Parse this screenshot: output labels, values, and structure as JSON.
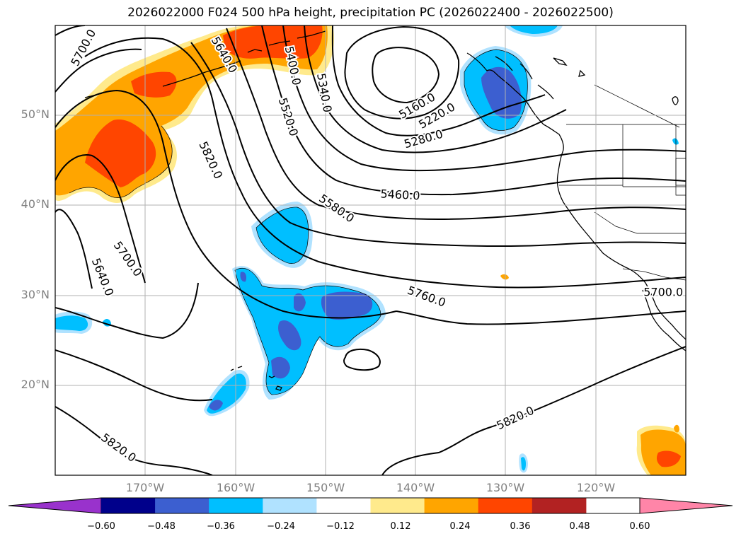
{
  "title": "2026022000 F024 500 hPa height, precipitation PC (2026022400 - 2026022500)",
  "map": {
    "lat_ticks": [
      "50°N",
      "40°N",
      "30°N",
      "20°N"
    ],
    "lon_ticks": [
      "170°W",
      "160°W",
      "150°W",
      "140°W",
      "130°W",
      "120°W"
    ],
    "extent": {
      "lon": [
        -180,
        -110
      ],
      "lat": [
        10,
        60
      ]
    },
    "grid": true,
    "contour_color": "#000000",
    "contour_labels": [
      {
        "text": "5700.0",
        "lon": -176.8,
        "lat": 57.5,
        "rot": -62
      },
      {
        "text": "5640.0",
        "lon": -161.3,
        "lat": 56.7,
        "rot": 60
      },
      {
        "text": "5400.0",
        "lon": -153.7,
        "lat": 55.5,
        "rot": 78
      },
      {
        "text": "5340.0",
        "lon": -150.2,
        "lat": 52.5,
        "rot": 80
      },
      {
        "text": "5520.0",
        "lon": -154.2,
        "lat": 49.8,
        "rot": 72
      },
      {
        "text": "5160.0",
        "lon": -139.8,
        "lat": 51.0,
        "rot": -30
      },
      {
        "text": "5220.0",
        "lon": -137.6,
        "lat": 49.9,
        "rot": -30
      },
      {
        "text": "5280.0",
        "lon": -139.1,
        "lat": 47.3,
        "rot": -16
      },
      {
        "text": "5820.0",
        "lon": -162.8,
        "lat": 45.0,
        "rot": 65
      },
      {
        "text": "5460.0",
        "lon": -141.7,
        "lat": 41.1,
        "rot": 3
      },
      {
        "text": "5580.0",
        "lon": -148.8,
        "lat": 39.6,
        "rot": 35
      },
      {
        "text": "5700.0",
        "lon": -172.0,
        "lat": 34.0,
        "rot": 55
      },
      {
        "text": "5640.0",
        "lon": -174.8,
        "lat": 32.0,
        "rot": 68
      },
      {
        "text": "5760.0",
        "lon": -138.8,
        "lat": 29.8,
        "rot": 20
      },
      {
        "text": "5700.0",
        "lon": -112.5,
        "lat": 30.3,
        "rot": 0
      },
      {
        "text": "5820.0",
        "lon": -128.9,
        "lat": 16.3,
        "rot": -25
      },
      {
        "text": "5820.0",
        "lon": -173.0,
        "lat": 13.0,
        "rot": 36
      }
    ]
  },
  "colorbar": {
    "ticks": [
      "−0.60",
      "−0.48",
      "−0.36",
      "−0.24",
      "−0.12",
      "0.12",
      "0.24",
      "0.36",
      "0.48",
      "0.60"
    ],
    "colors": [
      "#9932cc",
      "#00008b",
      "#3c5fd0",
      "#00bfff",
      "#b0e2ff",
      "#ffffff",
      "#ffea8c",
      "#ffa500",
      "#ff4500",
      "#b22222",
      "#ff85a8"
    ],
    "extend": "both"
  }
}
